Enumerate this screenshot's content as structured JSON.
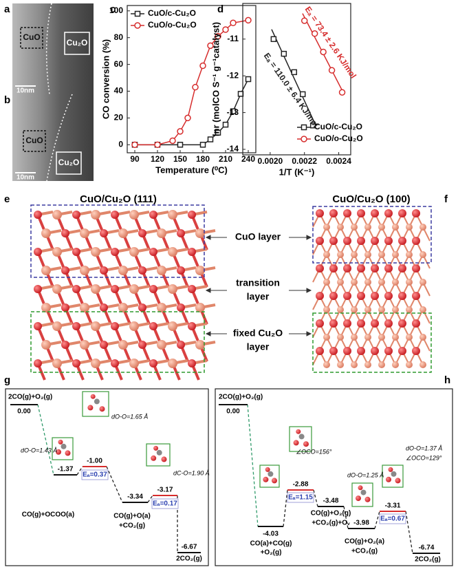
{
  "micrographs": [
    {
      "letter": "a",
      "phase1": "CuO",
      "phase2": "Cu₂O",
      "scale": "10nm"
    },
    {
      "letter": "b",
      "phase1": "CuO",
      "phase2": "Cu₂O",
      "scale": "10nm"
    }
  ],
  "chart_data": [
    {
      "type": "line",
      "letter": "c",
      "xlabel": "Temperature (⁰C)",
      "ylabel": "CO conversion (%)",
      "xlim": [
        80,
        250
      ],
      "xticks": [
        90,
        120,
        150,
        180,
        210,
        240
      ],
      "ylim": [
        -6,
        104
      ],
      "yticks": [
        0,
        20,
        40,
        60,
        80,
        100
      ],
      "legend": "upper left",
      "series": [
        {
          "name": "CuO/c-Cu₂O",
          "color": "#222222",
          "marker": "square",
          "x": [
            90,
            120,
            150,
            180,
            190,
            200,
            210,
            220,
            230,
            240
          ],
          "values": [
            0,
            0,
            0,
            0,
            4,
            9,
            15,
            25,
            38,
            49
          ]
        },
        {
          "name": "CuO/o-Cu₂O",
          "color": "#d62c2c",
          "marker": "circle",
          "x": [
            90,
            120,
            140,
            150,
            160,
            170,
            180,
            190,
            200,
            210,
            220,
            240
          ],
          "values": [
            0,
            0,
            3,
            10,
            20,
            43,
            59,
            74,
            81,
            86,
            91,
            93
          ]
        }
      ]
    },
    {
      "type": "scatter",
      "letter": "d",
      "xlabel": "1/T (K⁻¹)",
      "ylabel": "lnr (molCO S⁻¹ g⁻¹catalyst)",
      "xlim": [
        0.00184,
        0.00247
      ],
      "xticks": [
        {
          "value": 0.002,
          "label": "0.0020"
        },
        {
          "value": 0.0022,
          "label": "0.0022"
        },
        {
          "value": 0.0024,
          "label": "0.0024"
        }
      ],
      "ylim": [
        -14.15,
        -10.03
      ],
      "yticks": [
        -14,
        -13,
        -12,
        -11
      ],
      "legend": "lower right",
      "fit": true,
      "annotations": [
        "Eₐ = 110.0 ± 6.4 KJ/mol",
        "Eₐ = 73.4 ± 2.6 KJ/mol"
      ],
      "series": [
        {
          "name": "CuO/c-Cu₂O",
          "color": "#222222",
          "marker": "square",
          "x": [
            0.00202,
            0.00208,
            0.00214,
            0.00219,
            0.00225
          ],
          "values": [
            -11.0,
            -11.4,
            -11.9,
            -12.5,
            -13.35
          ]
        },
        {
          "name": "CuO/o-Cu₂O",
          "color": "#d62c2c",
          "marker": "circle",
          "x": [
            0.0022,
            0.00226,
            0.00231,
            0.00236,
            0.00242
          ],
          "values": [
            -10.5,
            -10.85,
            -11.35,
            -11.85,
            -12.45
          ]
        }
      ]
    }
  ],
  "structures": {
    "left_letter": "e",
    "right_letter": "f",
    "left_title": "CuO/Cu₂O (111)",
    "right_title": "CuO/Cu₂O (100)",
    "cuo_layer": "CuO layer",
    "transition_layer": [
      "transition",
      "layer"
    ],
    "fixed_layer": [
      "fixed Cu₂O",
      "layer"
    ]
  },
  "energy_diagrams": [
    {
      "letter": "g",
      "levels": [
        "0.00",
        "-1.37",
        "-1.00",
        "-3.34",
        "-3.17",
        "-6.67"
      ],
      "barriers": [
        "Eₐ=0.37",
        "Eₐ=0.17"
      ],
      "labels": [
        "2CO(g)+O₂(g)",
        "CO(g)+OCOO(a)",
        "CO(g)+O(a)",
        "+CO₂(g)",
        "2CO₂(g)"
      ],
      "notes": [
        "dO-O=1.43 Å",
        "dO-O=1.65 Å",
        "dC-O=1.90 Å"
      ]
    },
    {
      "letter": "h",
      "levels": [
        "0.00",
        "-4.03",
        "-2.88",
        "-3.48",
        "-3.98",
        "-3.31",
        "-6.74"
      ],
      "barriers": [
        "Eₐ=1.15",
        "Eₐ=0.67"
      ],
      "labels": [
        "2CO(g)+O₂(g)",
        "CO(a)+CO(g)",
        "+O₂(g)",
        "CO(g)+O₂(g)",
        "+CO₂(g)+Oᵥ",
        "CO(g)+O₂(a)",
        "+CO₂(g)",
        "2CO₂(g)"
      ],
      "notes": [
        "∠OCO=156°",
        "dO-O=1.25 Å",
        "dO-O=1.37 Å",
        "∠OCO=129°"
      ]
    }
  ]
}
